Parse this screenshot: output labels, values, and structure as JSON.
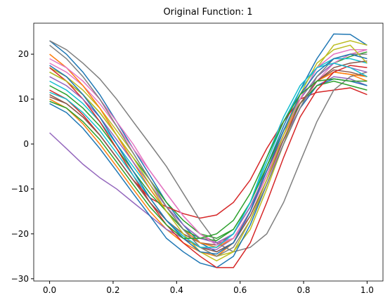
{
  "chart_data": {
    "type": "line",
    "title": "Original Function: 1",
    "x": [
      0,
      0.053,
      0.105,
      0.158,
      0.211,
      0.263,
      0.316,
      0.368,
      0.421,
      0.474,
      0.526,
      0.579,
      0.632,
      0.684,
      0.737,
      0.789,
      0.842,
      0.895,
      0.947,
      1
    ],
    "xlim": [
      -0.05,
      1.05
    ],
    "ylim": [
      -30.5,
      26.9
    ],
    "xticks": [
      {
        "value": 0,
        "label": "0.0"
      },
      0.2,
      0.4,
      0.6,
      0.8,
      {
        "value": 1,
        "label": "1.0"
      }
    ],
    "yticks": [
      {
        "value": -30,
        "label": "−30"
      },
      {
        "value": -20,
        "label": "−20"
      },
      {
        "value": -10,
        "label": "−10"
      },
      0,
      10,
      20
    ],
    "series": [
      {
        "color": "#1f77b4",
        "values": [
          23,
          20,
          16,
          11,
          5,
          -1,
          -7,
          -13,
          -18,
          -22,
          -24,
          -22,
          -15,
          -5,
          4,
          12,
          19,
          24.5,
          24.4,
          22
        ]
      },
      {
        "color": "#ff7f0e",
        "values": [
          10,
          8,
          4.5,
          0,
          -5,
          -10,
          -15,
          -19,
          -22,
          -24,
          -25,
          -22,
          -15,
          -7,
          2,
          9,
          14,
          16,
          15.5,
          14
        ]
      },
      {
        "color": "#2ca02c",
        "values": [
          16,
          14,
          11,
          7,
          2,
          -3,
          -8,
          -13,
          -17,
          -20,
          -21,
          -19,
          -13,
          -5,
          3,
          10,
          15,
          18,
          19.5,
          20.5
        ]
      },
      {
        "color": "#d62728",
        "values": [
          12,
          10,
          6.5,
          2,
          -3,
          -8,
          -12,
          -14,
          -15.5,
          -16.5,
          -15.8,
          -13,
          -8,
          -1,
          5,
          10,
          11.5,
          12,
          12.5,
          11
        ]
      },
      {
        "color": "#9467bd",
        "values": [
          2.5,
          -1,
          -4.5,
          -7.5,
          -10,
          -13,
          -16,
          -19,
          -21,
          -23,
          -23.5,
          -21,
          -15,
          -7,
          1,
          8,
          13,
          15,
          14.5,
          13
        ]
      },
      {
        "color": "#8c564b",
        "values": [
          11,
          9,
          6,
          2,
          -3,
          -8,
          -13,
          -17,
          -20,
          -22,
          -22.5,
          -20,
          -14,
          -6,
          2,
          9,
          14,
          16.5,
          16,
          15
        ]
      },
      {
        "color": "#e377c2",
        "values": [
          18,
          16,
          13,
          9,
          4,
          -1,
          -6,
          -11,
          -16,
          -20,
          -22,
          -21,
          -16,
          -8,
          0,
          8,
          14,
          18,
          20,
          21
        ]
      },
      {
        "color": "#7f7f7f",
        "values": [
          23,
          21,
          18,
          14.5,
          10,
          5,
          0,
          -5,
          -11,
          -17,
          -22,
          -24,
          -23,
          -20,
          -13,
          -4,
          5,
          12,
          15,
          16
        ]
      },
      {
        "color": "#bcbd22",
        "values": [
          17,
          15,
          12,
          8,
          3,
          -2,
          -8,
          -14,
          -19,
          -23,
          -25,
          -24,
          -19,
          -10,
          0,
          10,
          17,
          22,
          23,
          22
        ]
      },
      {
        "color": "#17becf",
        "values": [
          14,
          12,
          9,
          5,
          0,
          -5,
          -10,
          -15,
          -19,
          -22,
          -23,
          -20,
          -13,
          -4,
          5,
          12,
          17,
          19,
          19,
          18
        ]
      },
      {
        "color": "#1f77b4",
        "values": [
          9,
          7,
          3.5,
          -1,
          -6,
          -11,
          -16,
          -21,
          -24,
          -26.5,
          -27.5,
          -25,
          -18,
          -9,
          0,
          8,
          13,
          14.5,
          14,
          13
        ]
      },
      {
        "color": "#ff7f0e",
        "values": [
          20,
          17,
          13,
          8,
          2,
          -4,
          -10,
          -15,
          -19,
          -22,
          -23,
          -21,
          -15,
          -7,
          2,
          9,
          14,
          16,
          15.5,
          15
        ]
      },
      {
        "color": "#2ca02c",
        "values": [
          13,
          11,
          8,
          4,
          -1,
          -6,
          -11,
          -15,
          -19,
          -21,
          -21.5,
          -19,
          -13,
          -5,
          3,
          9,
          13,
          14,
          13,
          12
        ]
      },
      {
        "color": "#d62728",
        "values": [
          17,
          14,
          10,
          5,
          -1,
          -7,
          -13,
          -18,
          -22,
          -25,
          -27.5,
          -27.5,
          -22,
          -13,
          -3,
          6,
          12,
          16,
          17.5,
          17
        ]
      },
      {
        "color": "#9467bd",
        "values": [
          15,
          13,
          10,
          6,
          1,
          -4,
          -9,
          -14,
          -18,
          -21,
          -22,
          -20,
          -14,
          -6,
          3,
          10,
          15,
          18,
          17,
          16
        ]
      },
      {
        "color": "#8c564b",
        "values": [
          10.5,
          9,
          6,
          2,
          -3,
          -8,
          -13,
          -17,
          -21,
          -23,
          -24,
          -22,
          -16,
          -8,
          1,
          9,
          14,
          17,
          18,
          18.5
        ]
      },
      {
        "color": "#e377c2",
        "values": [
          19,
          17,
          14,
          10,
          5,
          0,
          -6,
          -11,
          -16,
          -20,
          -22.5,
          -21,
          -15,
          -7,
          2,
          10,
          17,
          20,
          21,
          21
        ]
      },
      {
        "color": "#7f7f7f",
        "values": [
          22,
          19,
          15,
          10,
          4,
          -2,
          -8,
          -14,
          -19,
          -23,
          -25,
          -23,
          -17,
          -9,
          0,
          8,
          15,
          19,
          20,
          20
        ]
      },
      {
        "color": "#bcbd22",
        "values": [
          16,
          14,
          11,
          7,
          2,
          -3,
          -9,
          -15,
          -20,
          -24,
          -26,
          -24,
          -17,
          -8,
          2,
          11,
          18,
          21,
          22,
          18
        ]
      },
      {
        "color": "#17becf",
        "values": [
          11.5,
          10,
          7,
          3,
          -2,
          -7,
          -12,
          -17,
          -20.5,
          -23,
          -23,
          -20,
          -13,
          -3,
          6,
          13,
          17,
          18,
          17,
          15
        ]
      },
      {
        "color": "#1f77b4",
        "values": [
          17.5,
          15,
          11,
          6,
          0,
          -6,
          -12,
          -17,
          -21,
          -24,
          -24.5,
          -22,
          -15,
          -6,
          3,
          11,
          16,
          19,
          20,
          19
        ]
      },
      {
        "color": "#2ca02c",
        "values": [
          9.5,
          8,
          5,
          1,
          -4,
          -9,
          -14,
          -18,
          -21,
          -21,
          -20,
          -17,
          -11,
          -3,
          5,
          11,
          14,
          14.5,
          14,
          14
        ]
      }
    ]
  }
}
